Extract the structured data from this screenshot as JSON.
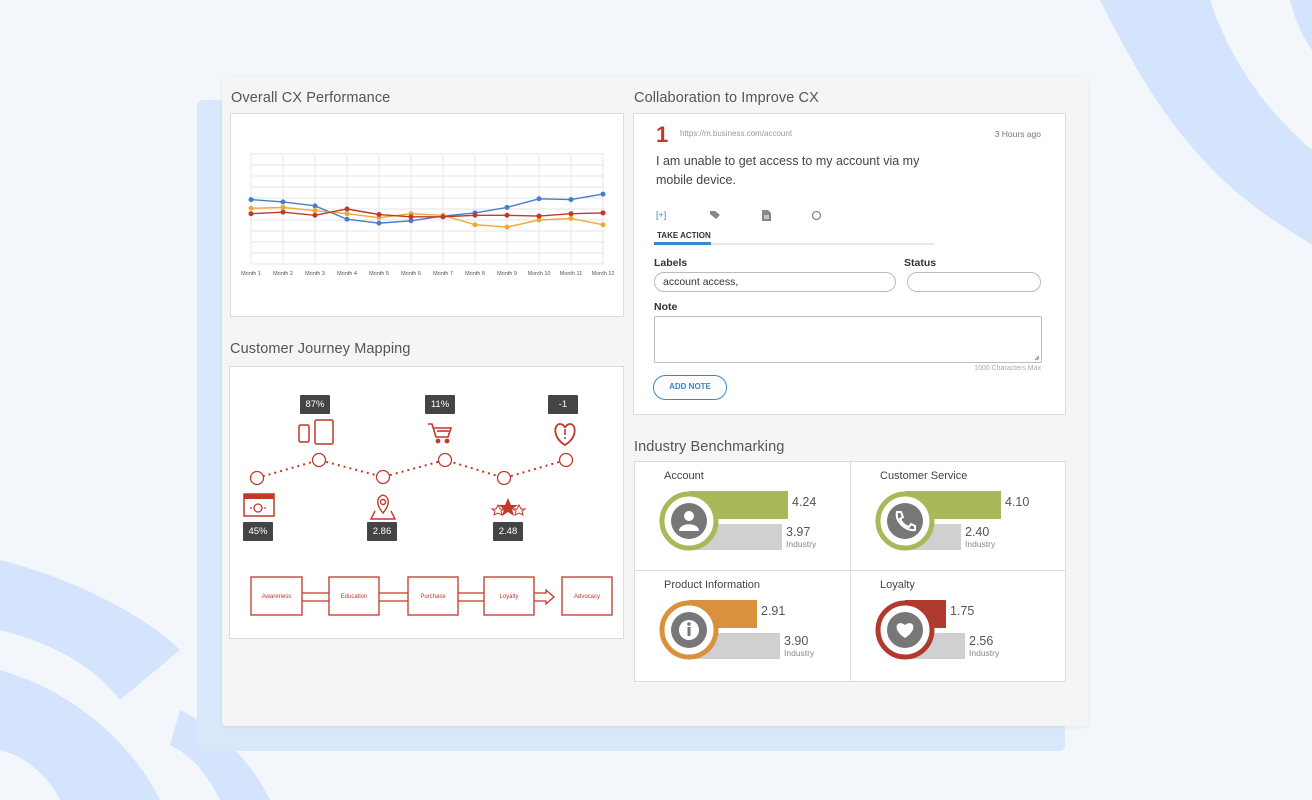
{
  "sections": {
    "cx_performance": "Overall CX Performance",
    "collaboration": "Collaboration to Improve CX",
    "journey": "Customer Journey Mapping",
    "benchmarking": "Industry Benchmarking"
  },
  "chart_data": {
    "type": "line",
    "categories": [
      "Month 1",
      "Month 2",
      "Month 3",
      "Month 4",
      "Month 5",
      "Month 6",
      "Month 7",
      "Month 8",
      "Month 9",
      "Month 10",
      "Month 11",
      "Month 12"
    ],
    "series": [
      {
        "color": "#4a7cc9",
        "values": [
          82,
          79,
          74,
          57,
          52,
          55,
          61,
          65,
          72,
          83,
          82,
          89
        ]
      },
      {
        "color": "#f0a830",
        "values": [
          71,
          72,
          68,
          64,
          59,
          64,
          62,
          50,
          47,
          56,
          58,
          50
        ]
      },
      {
        "color": "#c0392b",
        "values": [
          64,
          66,
          62,
          70,
          63,
          60,
          60,
          62,
          62,
          61,
          64,
          65
        ]
      }
    ],
    "ylim": [
      0,
      140
    ],
    "grid": true
  },
  "collab": {
    "number": "1",
    "url": "https://m.business.com/account",
    "time": "3 Hours ago",
    "message": "I am unable to get access to my account via my mobile device.",
    "icons": [
      "plus-bracket-icon",
      "tag-icon",
      "document-icon",
      "circle-icon"
    ],
    "tab_label": "TAKE ACTION",
    "labels_label": "Labels",
    "labels_value": "account access,",
    "status_label": "Status",
    "status_value": "",
    "note_label": "Note",
    "chars_max": "1000 Characters Max",
    "add_note": "ADD NOTE"
  },
  "journey": {
    "top_badges": [
      "87%",
      "11%",
      "-1"
    ],
    "bottom_badges": [
      "45%",
      "2.86",
      "2.48"
    ],
    "stages": [
      "Awareness",
      "Education",
      "Purchase",
      "Loyalty",
      "Advocacy"
    ],
    "accent": "#c0392b"
  },
  "benchmarks": [
    {
      "title": "Account",
      "score": "4.24",
      "industry": "3.97",
      "industry_label": "Industry",
      "color": "#a7b958",
      "icon": "person-icon",
      "score_val": 4.24,
      "industry_val": 3.97
    },
    {
      "title": "Customer Service",
      "score": "4.10",
      "industry": "2.40",
      "industry_label": "Industry",
      "color": "#a7b958",
      "icon": "phone-icon",
      "score_val": 4.1,
      "industry_val": 2.4
    },
    {
      "title": "Product Information",
      "score": "2.91",
      "industry": "3.90",
      "industry_label": "Industry",
      "color": "#d9913e",
      "icon": "info-icon",
      "score_val": 2.91,
      "industry_val": 3.9
    },
    {
      "title": "Loyalty",
      "score": "1.75",
      "industry": "2.56",
      "industry_label": "Industry",
      "color": "#b03a2e",
      "icon": "heart-icon",
      "score_val": 1.75,
      "industry_val": 2.56
    }
  ]
}
